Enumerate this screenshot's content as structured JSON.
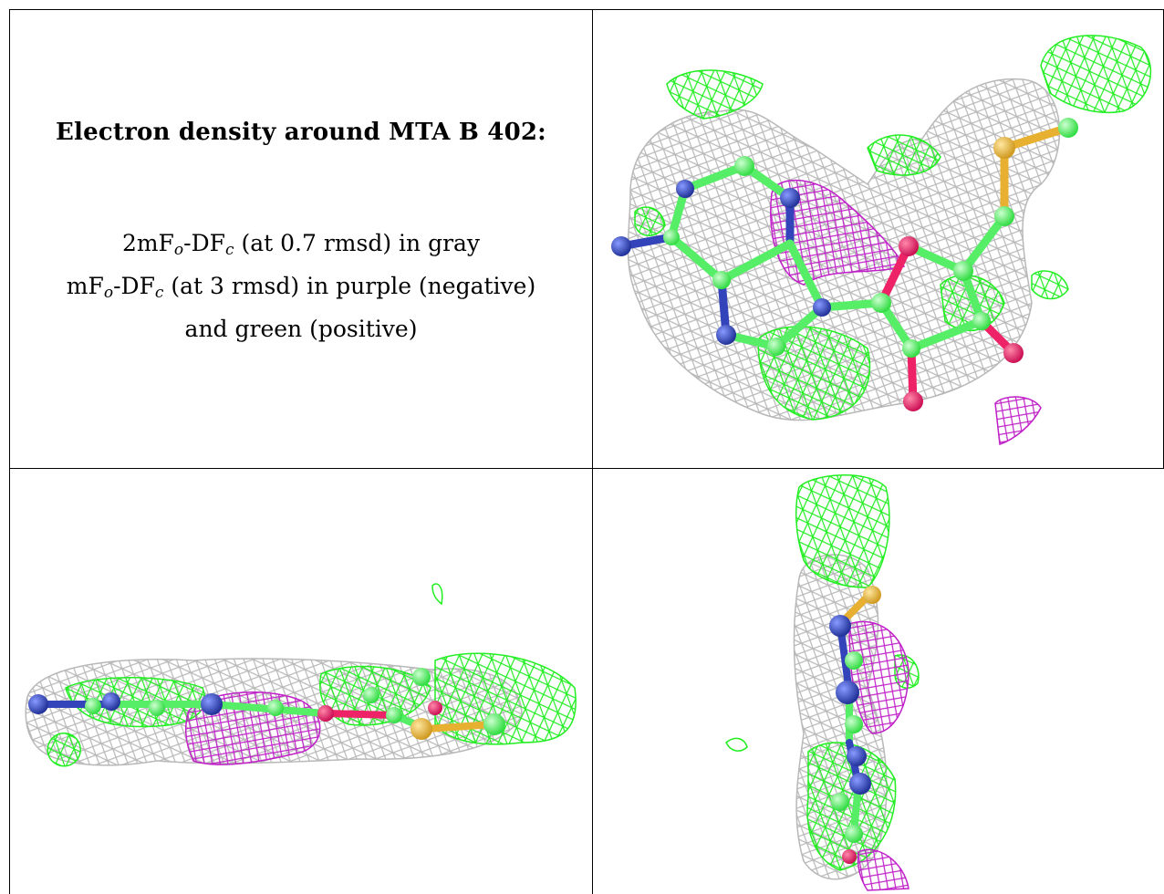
{
  "caption": {
    "title": "Electron density around MTA B 402:",
    "line1": {
      "a": "2mF",
      "a_sub": "o",
      "b": "-DF",
      "b_sub": "c",
      "rest": " (at 0.7 rmsd) in gray"
    },
    "line2": {
      "a": "mF",
      "a_sub": "o",
      "b": "-DF",
      "b_sub": "c",
      "rest": " (at 3 rmsd) in purple (negative)"
    },
    "line3": "and green (positive)"
  },
  "colors": {
    "gray_mesh": "#b8b8b8",
    "purple_mesh": "#c020c8",
    "green_mesh": "#22ee22",
    "carbon": "#55ee66",
    "nitrogen": "#3344bb",
    "oxygen": "#ee2266",
    "sulfur": "#e8b030"
  },
  "panels": [
    {
      "view": "top-right",
      "content": "molecular model with density mesh (face view)"
    },
    {
      "view": "bottom-left",
      "content": "molecular model with density mesh (edge view)"
    },
    {
      "view": "bottom-right",
      "content": "molecular model with density mesh (end view)"
    }
  ]
}
